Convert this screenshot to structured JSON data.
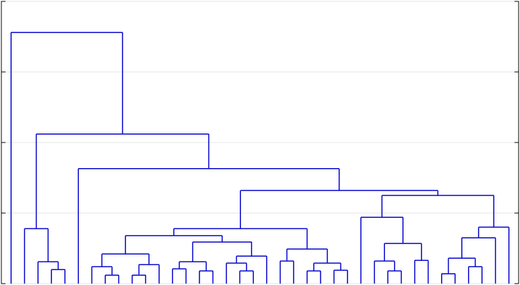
{
  "chart_data": {
    "type": "dendrogram",
    "ylim": [
      0,
      4
    ],
    "yticks": [
      0,
      1,
      2,
      3,
      4
    ],
    "grid": true,
    "color": "#0000cc",
    "tree": {
      "height": 3.56,
      "children": [
        {
          "height": 0
        },
        {
          "height": 2.12,
          "children": [
            {
              "height": 0.78,
              "children": [
                {
                  "height": 0
                },
                {
                  "height": 0.31,
                  "children": [
                    {
                      "height": 0
                    },
                    {
                      "height": 0.2,
                      "children": [
                        {
                          "height": 0
                        },
                        {
                          "height": 0
                        }
                      ]
                    }
                  ]
                }
              ]
            },
            {
              "height": 1.63,
              "children": [
                {
                  "height": 0
                },
                {
                  "height": 1.32,
                  "children": [
                    {
                      "height": 0.78,
                      "children": [
                        {
                          "height": 0.68,
                          "children": [
                            {
                              "height": 0.42,
                              "children": [
                                {
                                  "height": 0.24,
                                  "children": [
                                    {
                                      "height": 0
                                    },
                                    {
                                      "height": 0.12,
                                      "children": [
                                        {
                                          "height": 0
                                        },
                                        {
                                          "height": 0
                                        }
                                      ]
                                    }
                                  ]
                                },
                                {
                                  "height": 0.27,
                                  "children": [
                                    {
                                      "height": 0.12,
                                      "children": [
                                        {
                                          "height": 0
                                        },
                                        {
                                          "height": 0
                                        }
                                      ]
                                    },
                                    {
                                      "height": 0
                                    }
                                  ]
                                }
                              ]
                            },
                            {
                              "height": 0.59,
                              "children": [
                                {
                                  "height": 0.31,
                                  "children": [
                                    {
                                      "height": 0.21,
                                      "children": [
                                        {
                                          "height": 0
                                        },
                                        {
                                          "height": 0
                                        }
                                      ]
                                    },
                                    {
                                      "height": 0.18,
                                      "children": [
                                        {
                                          "height": 0
                                        },
                                        {
                                          "height": 0
                                        }
                                      ]
                                    }
                                  ]
                                },
                                {
                                  "height": 0.39,
                                  "children": [
                                    {
                                      "height": 0.29,
                                      "children": [
                                        {
                                          "height": 0
                                        },
                                        {
                                          "height": 0.18,
                                          "children": [
                                            {
                                              "height": 0
                                            },
                                            {
                                              "height": 0
                                            }
                                          ]
                                        }
                                      ]
                                    },
                                    {
                                      "height": 0
                                    }
                                  ]
                                }
                              ]
                            }
                          ]
                        },
                        {
                          "height": 0.49,
                          "children": [
                            {
                              "height": 0.32,
                              "children": [
                                {
                                  "height": 0
                                },
                                {
                                  "height": 0
                                }
                              ]
                            },
                            {
                              "height": 0.29,
                              "children": [
                                {
                                  "height": 0.18,
                                  "children": [
                                    {
                                      "height": 0
                                    },
                                    {
                                      "height": 0
                                    }
                                  ]
                                },
                                {
                                  "height": 0.19,
                                  "children": [
                                    {
                                      "height": 0
                                    },
                                    {
                                      "height": 0
                                    }
                                  ]
                                }
                              ]
                            }
                          ]
                        }
                      ]
                    },
                    {
                      "height": 1.25,
                      "children": [
                        {
                          "height": 0.94,
                          "children": [
                            {
                              "height": 0
                            },
                            {
                              "height": 0.57,
                              "children": [
                                {
                                  "height": 0.32,
                                  "children": [
                                    {
                                      "height": 0
                                    },
                                    {
                                      "height": 0.18,
                                      "children": [
                                        {
                                          "height": 0
                                        },
                                        {
                                          "height": 0
                                        }
                                      ]
                                    }
                                  ]
                                },
                                {
                                  "height": 0.33,
                                  "children": [
                                    {
                                      "height": 0
                                    },
                                    {
                                      "height": 0
                                    }
                                  ]
                                }
                              ]
                            }
                          ]
                        },
                        {
                          "height": 0.8,
                          "children": [
                            {
                              "height": 0.65,
                              "children": [
                                {
                                  "height": 0.36,
                                  "children": [
                                    {
                                      "height": 0.14,
                                      "children": [
                                        {
                                          "height": 0
                                        },
                                        {
                                          "height": 0
                                        }
                                      ]
                                    },
                                    {
                                      "height": 0.24,
                                      "children": [
                                        {
                                          "height": 0
                                        },
                                        {
                                          "height": 0
                                        }
                                      ]
                                    }
                                  ]
                                },
                                {
                                  "height": 0
                                }
                              ]
                            },
                            {
                              "height": 0
                            }
                          ]
                        }
                      ]
                    }
                  ]
                }
              ]
            }
          ]
        }
      ]
    }
  }
}
